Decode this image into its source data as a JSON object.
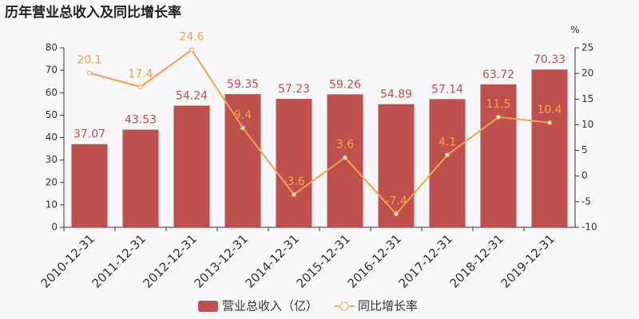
{
  "chart_data": {
    "type": "bar",
    "title": "历年营业总收入及同比增长率",
    "categories": [
      "2010-12-31",
      "2011-12-31",
      "2012-12-31",
      "2013-12-31",
      "2014-12-31",
      "2015-12-31",
      "2016-12-31",
      "2017-12-31",
      "2018-12-31",
      "2019-12-31"
    ],
    "series": [
      {
        "name": "营业总收入（亿）",
        "color": "#c0504d",
        "values": [
          37.07,
          43.53,
          54.24,
          59.35,
          57.23,
          59.26,
          54.89,
          57.14,
          63.72,
          70.33
        ]
      },
      {
        "name": "同比增长率",
        "color": "#f5a04a",
        "type": "line",
        "axis": "y2",
        "values": [
          20.1,
          17.4,
          24.6,
          9.4,
          -3.6,
          3.6,
          -7.4,
          4.1,
          11.5,
          10.4
        ]
      }
    ],
    "ylim": [
      0,
      80
    ],
    "yticks": [
      0,
      10,
      20,
      30,
      40,
      50,
      60,
      70,
      80
    ],
    "y2lim": [
      -10,
      25
    ],
    "y2ticks": [
      -10,
      -5,
      0,
      5,
      10,
      15,
      20,
      25
    ],
    "y2label": "%"
  }
}
